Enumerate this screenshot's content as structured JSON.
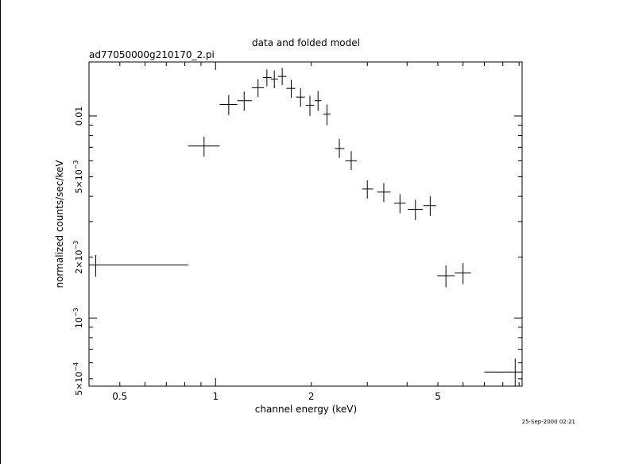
{
  "chart_data": {
    "type": "scatter",
    "title": "data and folded model",
    "subtitle": "ad77050000g210170_2.pi",
    "xlabel": "channel energy (keV)",
    "ylabel": "normalized counts/sec/keV",
    "timestamp": "25-Sep-2000 02:21",
    "x_scale": "log",
    "y_scale": "log",
    "xlim": [
      0.4,
      9.2
    ],
    "ylim": [
      0.00046,
      0.0185
    ],
    "x_ticks": [
      {
        "value": 0.5,
        "label": "0.5"
      },
      {
        "value": 1,
        "label": "1"
      },
      {
        "value": 2,
        "label": "2"
      },
      {
        "value": 5,
        "label": "5"
      }
    ],
    "y_ticks": [
      {
        "value": 0.0005,
        "mant": "5×10",
        "exp": "−4"
      },
      {
        "value": 0.001,
        "mant": "10",
        "exp": "−3"
      },
      {
        "value": 0.002,
        "mant": "2×10",
        "exp": "−3"
      },
      {
        "value": 0.005,
        "mant": "5×10",
        "exp": "−3"
      },
      {
        "value": 0.01,
        "mant": "0.01",
        "exp": ""
      }
    ],
    "grid": false,
    "series": [
      {
        "points": [
          {
            "x": 0.42,
            "xlo": 0.4,
            "xhi": 0.82,
            "y": 0.00183,
            "ylo": 0.0016,
            "yhi": 0.00205
          },
          {
            "x": 0.92,
            "xlo": 0.82,
            "xhi": 1.03,
            "y": 0.0071,
            "ylo": 0.0063,
            "yhi": 0.0079
          },
          {
            "x": 1.1,
            "xlo": 1.03,
            "xhi": 1.17,
            "y": 0.0114,
            "ylo": 0.0101,
            "yhi": 0.0127
          },
          {
            "x": 1.23,
            "xlo": 1.17,
            "xhi": 1.3,
            "y": 0.0119,
            "ylo": 0.0106,
            "yhi": 0.0132
          },
          {
            "x": 1.36,
            "xlo": 1.3,
            "xhi": 1.42,
            "y": 0.0138,
            "ylo": 0.0124,
            "yhi": 0.0152
          },
          {
            "x": 1.45,
            "xlo": 1.41,
            "xhi": 1.5,
            "y": 0.0155,
            "ylo": 0.014,
            "yhi": 0.017
          },
          {
            "x": 1.53,
            "xlo": 1.49,
            "xhi": 1.57,
            "y": 0.0152,
            "ylo": 0.0137,
            "yhi": 0.0168
          },
          {
            "x": 1.62,
            "xlo": 1.57,
            "xhi": 1.67,
            "y": 0.0157,
            "ylo": 0.0142,
            "yhi": 0.0173
          },
          {
            "x": 1.73,
            "xlo": 1.67,
            "xhi": 1.78,
            "y": 0.0137,
            "ylo": 0.0123,
            "yhi": 0.0151
          },
          {
            "x": 1.85,
            "xlo": 1.79,
            "xhi": 1.91,
            "y": 0.0124,
            "ylo": 0.0111,
            "yhi": 0.0137
          },
          {
            "x": 1.98,
            "xlo": 1.92,
            "xhi": 2.04,
            "y": 0.0113,
            "ylo": 0.01,
            "yhi": 0.0126
          },
          {
            "x": 2.1,
            "xlo": 2.05,
            "xhi": 2.15,
            "y": 0.0119,
            "ylo": 0.0106,
            "yhi": 0.0133
          },
          {
            "x": 2.24,
            "xlo": 2.18,
            "xhi": 2.3,
            "y": 0.0102,
            "ylo": 0.009,
            "yhi": 0.0114
          },
          {
            "x": 2.45,
            "xlo": 2.37,
            "xhi": 2.54,
            "y": 0.0069,
            "ylo": 0.0062,
            "yhi": 0.0077
          },
          {
            "x": 2.67,
            "xlo": 2.56,
            "xhi": 2.78,
            "y": 0.006,
            "ylo": 0.0054,
            "yhi": 0.0067
          },
          {
            "x": 3.0,
            "xlo": 2.89,
            "xhi": 3.13,
            "y": 0.00435,
            "ylo": 0.0039,
            "yhi": 0.0048
          },
          {
            "x": 3.38,
            "xlo": 3.22,
            "xhi": 3.55,
            "y": 0.0042,
            "ylo": 0.00375,
            "yhi": 0.00465
          },
          {
            "x": 3.8,
            "xlo": 3.64,
            "xhi": 3.96,
            "y": 0.0037,
            "ylo": 0.0033,
            "yhi": 0.0041
          },
          {
            "x": 4.25,
            "xlo": 4.02,
            "xhi": 4.48,
            "y": 0.00345,
            "ylo": 0.00305,
            "yhi": 0.00385
          },
          {
            "x": 4.73,
            "xlo": 4.5,
            "xhi": 4.93,
            "y": 0.0036,
            "ylo": 0.0032,
            "yhi": 0.004
          },
          {
            "x": 5.3,
            "xlo": 4.98,
            "xhi": 5.65,
            "y": 0.00162,
            "ylo": 0.00142,
            "yhi": 0.00182
          },
          {
            "x": 6.0,
            "xlo": 5.65,
            "xhi": 6.35,
            "y": 0.00167,
            "ylo": 0.00147,
            "yhi": 0.00187
          },
          {
            "x": 8.75,
            "xlo": 7.0,
            "xhi": 9.2,
            "y": 0.00054,
            "ylo": 0.00046,
            "yhi": 0.00063
          }
        ]
      }
    ]
  }
}
